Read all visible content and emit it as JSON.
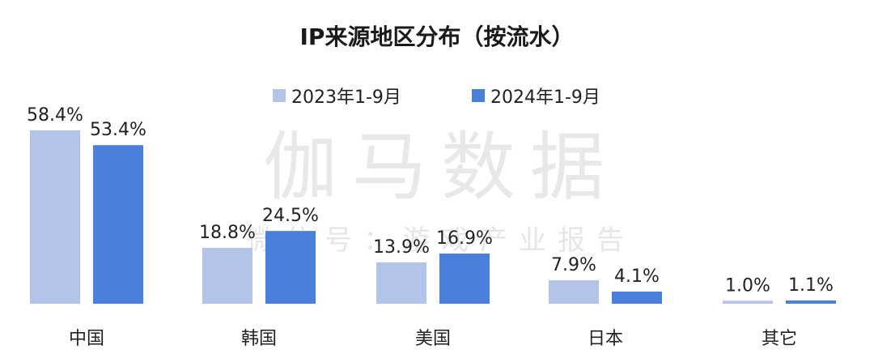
{
  "chart_data": {
    "type": "bar",
    "title": "IP来源地区分布（按流水）",
    "categories": [
      "中国",
      "韩国",
      "美国",
      "日本",
      "其它"
    ],
    "series": [
      {
        "name": "2023年1-9月",
        "values": [
          58.4,
          18.8,
          13.9,
          7.9,
          1.0
        ],
        "labels": [
          "58.4%",
          "18.8%",
          "13.9%",
          "7.9%",
          "1.0%"
        ],
        "color": "#b4c3e8"
      },
      {
        "name": "2024年1-9月",
        "values": [
          53.4,
          24.5,
          16.9,
          4.1,
          1.1
        ],
        "labels": [
          "53.4%",
          "24.5%",
          "16.9%",
          "4.1%",
          "1.1%"
        ],
        "color": "#4a7fdb"
      }
    ],
    "ylim": [
      0,
      60
    ],
    "unit": "%",
    "legend": "top-center",
    "grid": false,
    "xlabel": "",
    "ylabel": ""
  },
  "watermark": {
    "main": "伽马数据",
    "sub": "微信号：游戏产业报告"
  }
}
